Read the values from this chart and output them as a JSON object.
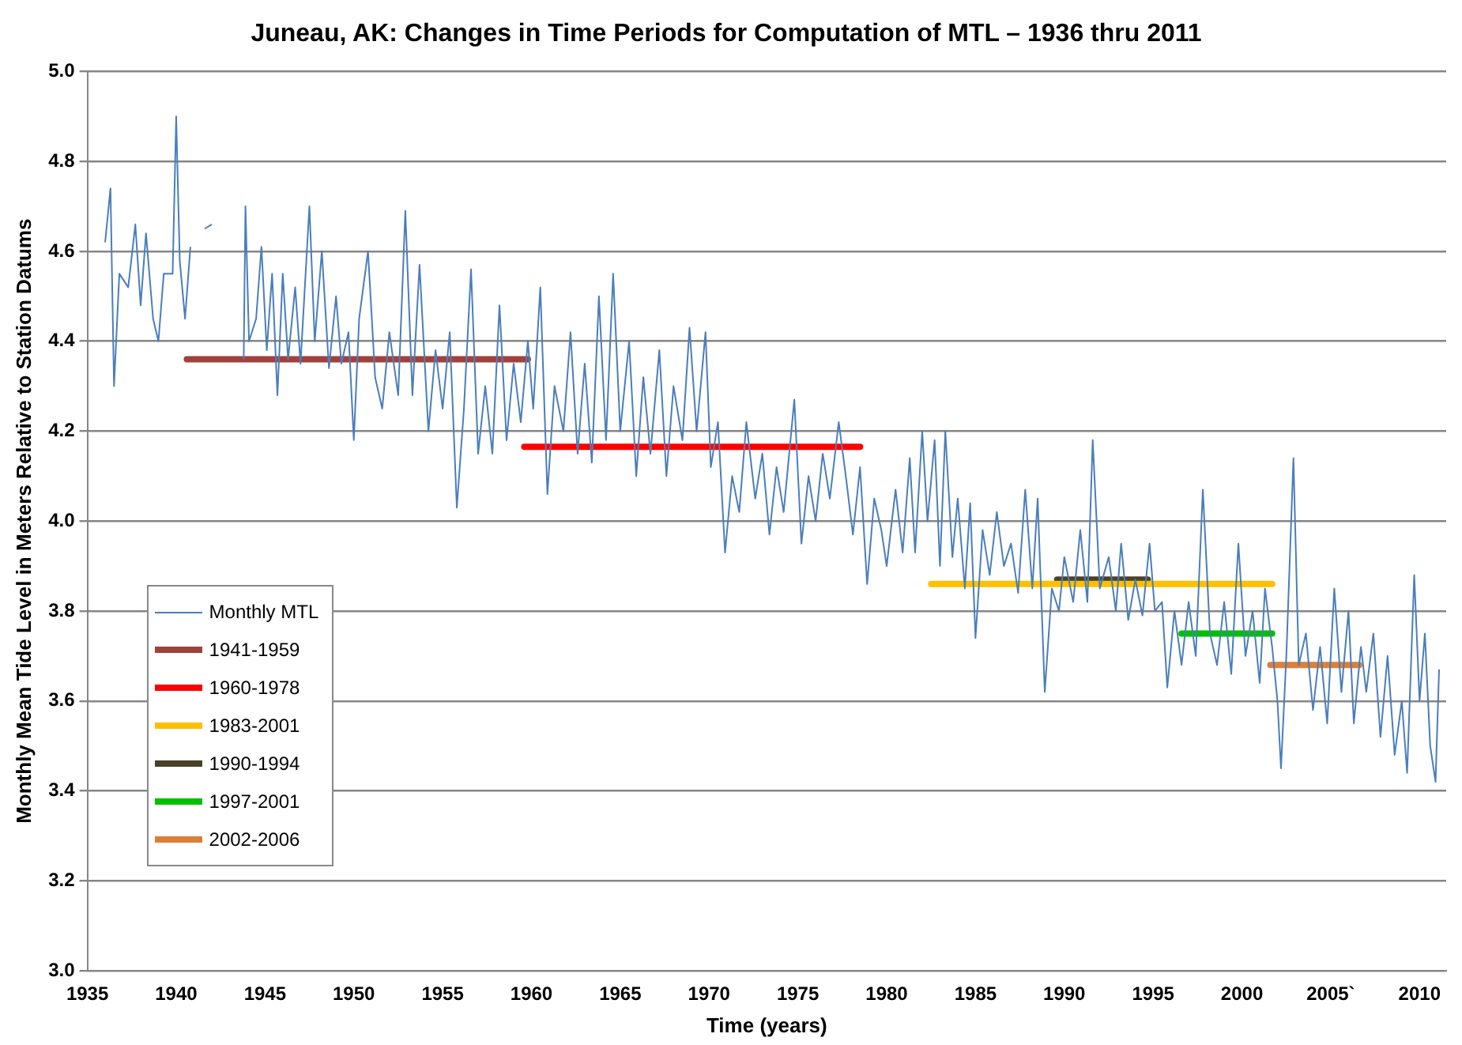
{
  "chart_data": {
    "type": "line",
    "title": "Juneau, AK: Changes in Time Periods for Computation of MTL – 1936 thru 2011",
    "xlabel": "Time (years)",
    "ylabel": "Monthly Mean Tide Level in Meters Relative to Station Datums",
    "xlim": [
      1935,
      2011.5
    ],
    "xticks": [
      1935,
      1940,
      1945,
      1950,
      1955,
      1960,
      1965,
      1970,
      1975,
      1980,
      1985,
      1990,
      1995,
      2000,
      {
        "value": 2005,
        "label": "2005`"
      },
      2010
    ],
    "ylim": [
      3.0,
      5.0
    ],
    "yticks": [
      {
        "value": 3.0,
        "label": "3.0"
      },
      {
        "value": 3.2,
        "label": "3.2"
      },
      {
        "value": 3.4,
        "label": "3.4"
      },
      {
        "value": 3.6,
        "label": "3.6"
      },
      {
        "value": 3.8,
        "label": "3.8"
      },
      {
        "value": 4.0,
        "label": "4.0"
      },
      {
        "value": 4.2,
        "label": "4.2"
      },
      {
        "value": 4.4,
        "label": "4.4"
      },
      {
        "value": 4.6,
        "label": "4.6"
      },
      {
        "value": 4.8,
        "label": "4.8"
      },
      {
        "value": 5.0,
        "label": "5.0"
      }
    ],
    "grid": "y",
    "legend": "bottom left",
    "marker": "none",
    "line_style": "solid",
    "series": [
      {
        "name": "Monthly MTL",
        "color": "#4a7ebb",
        "x": [
          1936.0,
          1936.3,
          1936.5,
          1936.8,
          1937.3,
          1937.7,
          1938.0,
          1938.3,
          1938.7,
          1939.0,
          1939.3,
          1939.8,
          1940.0,
          1940.2,
          1940.5,
          1940.8,
          1941.3,
          1941.6,
          1942.0,
          1942.8,
          1943.8,
          1943.9,
          1944.1,
          1944.5,
          1944.8,
          1945.1,
          1945.4,
          1945.7,
          1946.0,
          1946.3,
          1946.7,
          1947.0,
          1947.5,
          1947.8,
          1948.2,
          1948.6,
          1949.0,
          1949.3,
          1949.7,
          1950.0,
          1950.3,
          1950.8,
          1951.2,
          1951.6,
          1952.0,
          1952.5,
          1952.9,
          1953.3,
          1953.7,
          1954.2,
          1954.6,
          1955.0,
          1955.4,
          1955.8,
          1956.2,
          1956.6,
          1957.0,
          1957.4,
          1957.8,
          1958.2,
          1958.6,
          1959.0,
          1959.4,
          1959.8,
          1960.1,
          1960.5,
          1960.9,
          1961.3,
          1961.8,
          1962.2,
          1962.6,
          1963.0,
          1963.4,
          1963.8,
          1964.2,
          1964.6,
          1965.0,
          1965.5,
          1965.9,
          1966.3,
          1966.7,
          1967.2,
          1967.6,
          1968.0,
          1968.5,
          1968.9,
          1969.3,
          1969.8,
          1970.1,
          1970.5,
          1970.9,
          1971.3,
          1971.7,
          1972.1,
          1972.6,
          1973.0,
          1973.4,
          1973.8,
          1974.2,
          1974.8,
          1975.2,
          1975.6,
          1976.0,
          1976.4,
          1976.8,
          1977.3,
          1977.7,
          1978.1,
          1978.5,
          1978.9,
          1979.3,
          1979.7,
          1980.0,
          1980.5,
          1980.9,
          1981.3,
          1981.6,
          1982.0,
          1982.3,
          1982.7,
          1983.0,
          1983.3,
          1983.7,
          1984.0,
          1984.4,
          1984.7,
          1985.0,
          1985.4,
          1985.8,
          1986.2,
          1986.6,
          1987.0,
          1987.4,
          1987.8,
          1988.2,
          1988.5,
          1988.9,
          1989.3,
          1989.7,
          1990.0,
          1990.5,
          1990.9,
          1991.3,
          1991.6,
          1992.0,
          1992.5,
          1992.9,
          1993.2,
          1993.6,
          1994.0,
          1994.4,
          1994.8,
          1995.1,
          1995.5,
          1995.8,
          1996.2,
          1996.6,
          1997.0,
          1997.4,
          1997.8,
          1998.2,
          1998.6,
          1999.0,
          1999.4,
          1999.8,
          2000.2,
          2000.6,
          2001.0,
          2001.3,
          2001.7,
          2002.0,
          2002.2,
          2002.5,
          2002.9,
          2003.2,
          2003.6,
          2004.0,
          2004.4,
          2004.8,
          2005.2,
          2005.6,
          2006.0,
          2006.3,
          2006.7,
          2007.0,
          2007.4,
          2007.8,
          2008.2,
          2008.6,
          2009.0,
          2009.3,
          2009.7,
          2010.0,
          2010.3,
          2010.6,
          2010.9,
          2011.1
        ],
        "values": [
          4.62,
          4.74,
          4.3,
          4.55,
          4.52,
          4.66,
          4.48,
          4.64,
          4.45,
          4.4,
          4.55,
          4.55,
          4.9,
          4.58,
          4.45,
          4.61,
          null,
          4.65,
          4.66,
          null,
          4.36,
          4.7,
          4.4,
          4.45,
          4.61,
          4.38,
          4.55,
          4.28,
          4.55,
          4.36,
          4.52,
          4.35,
          4.7,
          4.4,
          4.6,
          4.34,
          4.5,
          4.35,
          4.42,
          4.18,
          4.45,
          4.6,
          4.32,
          4.25,
          4.42,
          4.28,
          4.69,
          4.28,
          4.57,
          4.2,
          4.38,
          4.25,
          4.42,
          4.03,
          4.25,
          4.56,
          4.15,
          4.3,
          4.15,
          4.48,
          4.18,
          4.35,
          4.22,
          4.4,
          4.25,
          4.52,
          4.06,
          4.3,
          4.2,
          4.42,
          4.15,
          4.35,
          4.13,
          4.5,
          4.18,
          4.55,
          4.2,
          4.4,
          4.1,
          4.32,
          4.15,
          4.38,
          4.1,
          4.3,
          4.18,
          4.43,
          4.2,
          4.42,
          4.12,
          4.22,
          3.93,
          4.1,
          4.02,
          4.22,
          4.05,
          4.15,
          3.97,
          4.12,
          4.02,
          4.27,
          3.95,
          4.1,
          4.0,
          4.15,
          4.05,
          4.22,
          4.1,
          3.97,
          4.12,
          3.86,
          4.05,
          3.98,
          3.9,
          4.07,
          3.93,
          4.14,
          3.93,
          4.2,
          4.0,
          4.18,
          3.9,
          4.2,
          3.92,
          4.05,
          3.85,
          4.04,
          3.74,
          3.98,
          3.88,
          4.02,
          3.9,
          3.95,
          3.84,
          4.07,
          3.85,
          4.05,
          3.62,
          3.85,
          3.8,
          3.92,
          3.82,
          3.98,
          3.82,
          4.18,
          3.85,
          3.92,
          3.8,
          3.95,
          3.78,
          3.87,
          3.79,
          3.95,
          3.8,
          3.82,
          3.63,
          3.8,
          3.68,
          3.82,
          3.7,
          4.07,
          3.75,
          3.68,
          3.82,
          3.66,
          3.95,
          3.7,
          3.8,
          3.64,
          3.85,
          3.72,
          3.6,
          3.45,
          3.7,
          4.14,
          3.68,
          3.75,
          3.58,
          3.72,
          3.55,
          3.85,
          3.62,
          3.8,
          3.55,
          3.72,
          3.62,
          3.75,
          3.52,
          3.7,
          3.48,
          3.6,
          3.44,
          3.88,
          3.6,
          3.75,
          3.5,
          3.42,
          3.67
        ]
      },
      {
        "name": "1941-1959",
        "color": "#a0413c",
        "x": [
          1940.6,
          1959.8
        ],
        "values": [
          4.36,
          4.36
        ]
      },
      {
        "name": "1960-1978",
        "color": "#ff0000",
        "x": [
          1959.6,
          1978.5
        ],
        "values": [
          4.165,
          4.165
        ]
      },
      {
        "name": "1983-2001",
        "color": "#ffc000",
        "x": [
          1982.5,
          2001.7
        ],
        "values": [
          3.86,
          3.86
        ]
      },
      {
        "name": "1990-1994",
        "color": "#4a4228",
        "x": [
          1989.6,
          1994.7
        ],
        "values": [
          3.87,
          3.87
        ]
      },
      {
        "name": "1997-2001",
        "color": "#00c000",
        "x": [
          1996.6,
          2001.7
        ],
        "values": [
          3.75,
          3.75
        ]
      },
      {
        "name": "2002-2006",
        "color": "#d9803a",
        "x": [
          2001.6,
          2006.6
        ],
        "values": [
          3.68,
          3.68
        ]
      }
    ]
  }
}
